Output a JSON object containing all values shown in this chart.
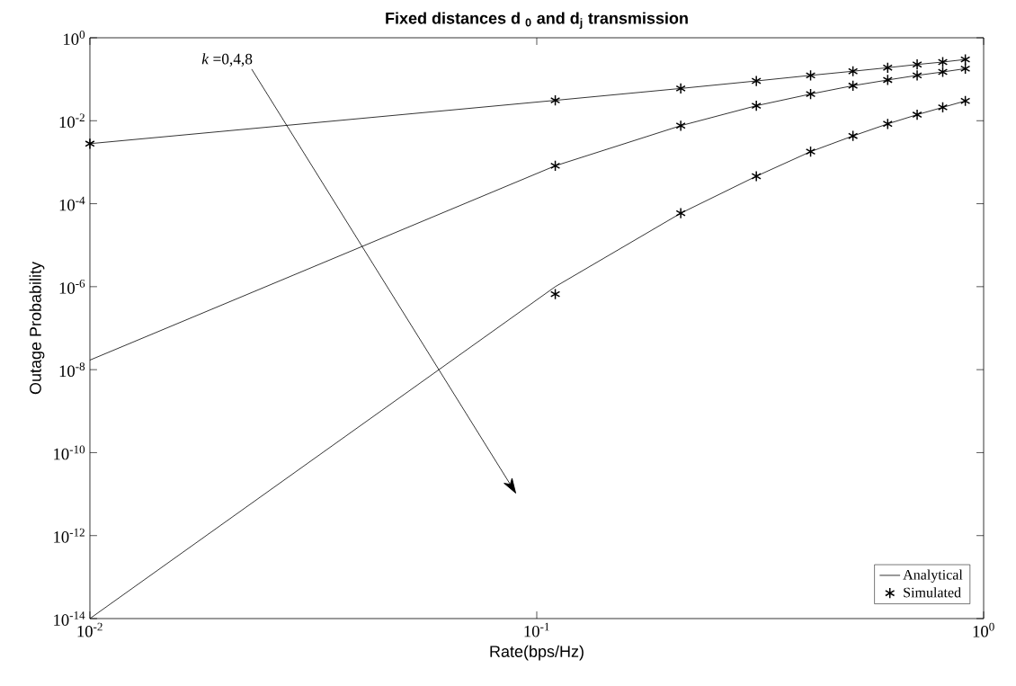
{
  "chart_data": {
    "type": "line",
    "title": "Fixed distances d $_{0}$ and d$_{j}$ transmission",
    "xlabel": "Rate(bps/Hz)",
    "ylabel": "Outage Probability",
    "x": [
      0.01,
      0.11,
      0.21,
      0.31,
      0.41,
      0.51,
      0.61,
      0.71,
      0.81,
      0.91
    ],
    "series": [
      {
        "name": "Analytical",
        "color": "#000000",
        "marker": "none",
        "line_style": "solid",
        "values": [
          0.0028,
          0.031,
          0.06,
          0.091,
          0.124,
          0.156,
          0.19,
          0.227,
          0.26,
          0.3
        ]
      },
      {
        "color": "#000000",
        "marker": "none",
        "line_style": "solid",
        "values": [
          1.7e-08,
          0.00082,
          0.0076,
          0.023,
          0.044,
          0.07,
          0.096,
          0.124,
          0.15,
          0.18
        ]
      },
      {
        "color": "#000000",
        "marker": "none",
        "line_style": "solid",
        "values": [
          1e-14,
          1e-06,
          5.9e-05,
          0.00046,
          0.0018,
          0.0043,
          0.0084,
          0.014,
          0.021,
          0.03
        ]
      },
      {
        "name": "Simulated",
        "type": "scatter",
        "color": "#000000",
        "marker": "cross",
        "values": [
          0.0028,
          0.031,
          0.06,
          0.091,
          0.124,
          0.156,
          0.19,
          0.227,
          0.26,
          0.3
        ]
      },
      {
        "type": "scatter",
        "color": "#000000",
        "marker": "cross",
        "values": [
          null,
          0.00082,
          0.0076,
          0.023,
          0.044,
          0.07,
          0.096,
          0.124,
          0.15,
          0.18
        ]
      },
      {
        "type": "scatter",
        "color": "#000000",
        "marker": "cross",
        "values": [
          null,
          6.6e-07,
          5.9e-05,
          0.00046,
          0.0018,
          0.0043,
          0.0084,
          0.014,
          0.021,
          0.03
        ]
      }
    ],
    "log": "xy",
    "xlim": [
      0.01,
      1
    ],
    "ylim": [
      1e-14,
      1
    ],
    "xticks": [
      {
        "value": 0.01,
        "label": "10$^{-2}$"
      },
      {
        "value": 0.1,
        "label": "10$^{-1}$"
      },
      {
        "value": 1,
        "label": "10$^{0}$"
      }
    ],
    "yticks": [
      {
        "value": 1e-14,
        "label": "10$^{-14}$"
      },
      {
        "value": 1e-12,
        "label": "10$^{-12}$"
      },
      {
        "value": 1e-10,
        "label": "10$^{-10}$"
      },
      {
        "value": 1e-08,
        "label": "10$^{-8}$"
      },
      {
        "value": 1e-06,
        "label": "10$^{-6}$"
      },
      {
        "value": 0.0001,
        "label": "10$^{-4}$"
      },
      {
        "value": 0.01,
        "label": "10$^{-2}$"
      },
      {
        "value": 1,
        "label": "10$^{0}$"
      }
    ],
    "legend": "bottom right",
    "annotations": [
      "*k* =0,4,8"
    ]
  }
}
